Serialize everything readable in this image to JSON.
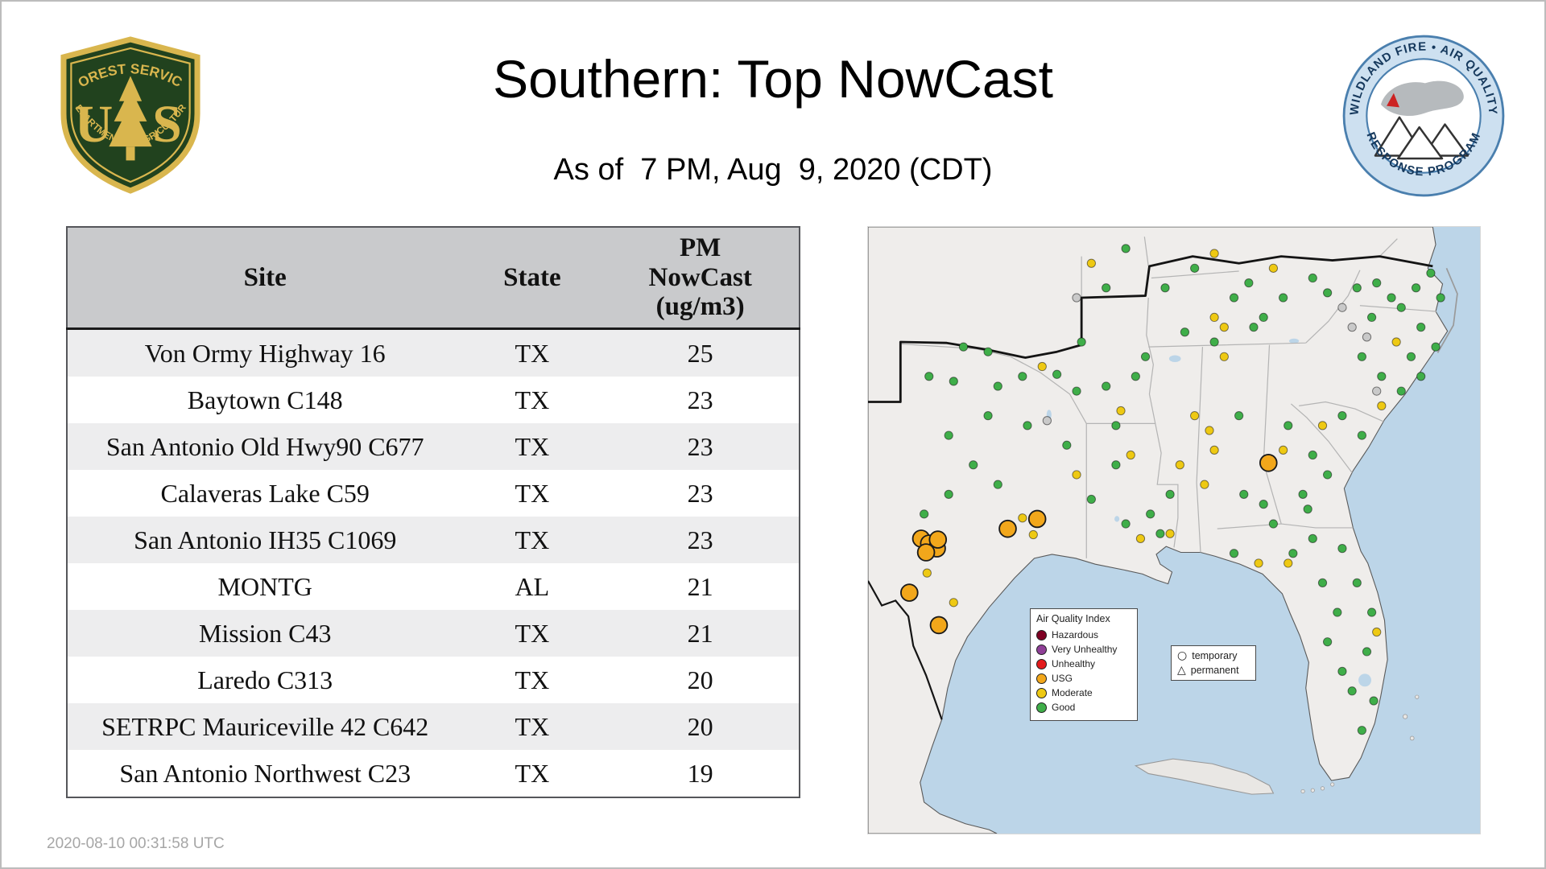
{
  "header": {
    "title": "Southern: Top NowCast",
    "subtitle": "As of  7 PM, Aug  9, 2020 (CDT)",
    "fs_logo": {
      "arc_top": "FOREST SERVICE",
      "letter_left": "U",
      "letter_right": "S",
      "arc_bottom": "DEPARTMENT OF AGRICULTURE"
    },
    "wfaqrp_logo": {
      "arc_top": "WILDLAND FIRE • AIR QUALITY",
      "arc_bottom": "RESPONSE PROGRAM"
    }
  },
  "table": {
    "columns": [
      "Site",
      "State",
      "PM\nNowCast\n(ug/m3)"
    ],
    "rows": [
      [
        "Von Ormy Highway 16",
        "TX",
        25
      ],
      [
        "Baytown C148",
        "TX",
        23
      ],
      [
        "San Antonio Old Hwy90 C677",
        "TX",
        23
      ],
      [
        "Calaveras Lake C59",
        "TX",
        23
      ],
      [
        "San Antonio IH35 C1069",
        "TX",
        23
      ],
      [
        "MONTG",
        "AL",
        21
      ],
      [
        "Mission C43",
        "TX",
        21
      ],
      [
        "Laredo C313",
        "TX",
        20
      ],
      [
        "SETRPC Mauriceville 42 C642",
        "TX",
        20
      ],
      [
        "San Antonio Northwest C23",
        "TX",
        19
      ]
    ]
  },
  "map": {
    "colors": {
      "good": "#3fae49",
      "moderate": "#eec913",
      "usg": "#f2a71b",
      "unhealthy": "#e31a1c",
      "very_unhealthy": "#8f3f97",
      "hazardous": "#7e0023",
      "no_data": "#c9c9c9",
      "water": "#bcd5e8",
      "land": "#efedeb"
    },
    "aqi_legend": {
      "title": "Air Quality Index",
      "items": [
        {
          "label": "Hazardous",
          "color": "#7e0023"
        },
        {
          "label": "Very Unhealthy",
          "color": "#8f3f97"
        },
        {
          "label": "Unhealthy",
          "color": "#e31a1c"
        },
        {
          "label": "USG",
          "color": "#f2a71b"
        },
        {
          "label": "Moderate",
          "color": "#eec913"
        },
        {
          "label": "Good",
          "color": "#3fae49"
        }
      ]
    },
    "marker_legend": {
      "items": [
        {
          "symbol": "circle",
          "label": "temporary"
        },
        {
          "symbol": "triangle",
          "label": "permanent"
        }
      ]
    },
    "points": [
      [
        97,
        122,
        "g"
      ],
      [
        122,
        127,
        "g"
      ],
      [
        62,
        152,
        "g"
      ],
      [
        87,
        157,
        "g"
      ],
      [
        132,
        162,
        "g"
      ],
      [
        157,
        152,
        "g"
      ],
      [
        177,
        142,
        "y"
      ],
      [
        192,
        150,
        "g"
      ],
      [
        212,
        167,
        "g"
      ],
      [
        122,
        192,
        "g"
      ],
      [
        82,
        212,
        "g"
      ],
      [
        162,
        202,
        "g"
      ],
      [
        182,
        197,
        "n"
      ],
      [
        107,
        242,
        "g"
      ],
      [
        132,
        262,
        "g"
      ],
      [
        82,
        272,
        "g"
      ],
      [
        57,
        292,
        "g"
      ],
      [
        202,
        222,
        "g"
      ],
      [
        212,
        252,
        "y"
      ],
      [
        227,
        277,
        "g"
      ],
      [
        60,
        352,
        "y"
      ],
      [
        87,
        382,
        "y"
      ],
      [
        54,
        317,
        "o"
      ],
      [
        62,
        322,
        "o"
      ],
      [
        70,
        327,
        "o"
      ],
      [
        59,
        331,
        "o"
      ],
      [
        71,
        318,
        "o"
      ],
      [
        142,
        307,
        "o"
      ],
      [
        172,
        297,
        "o"
      ],
      [
        157,
        296,
        "y"
      ],
      [
        168,
        313,
        "y"
      ],
      [
        42,
        372,
        "o"
      ],
      [
        72,
        405,
        "o"
      ],
      [
        242,
        162,
        "g"
      ],
      [
        272,
        152,
        "g"
      ],
      [
        257,
        187,
        "y"
      ],
      [
        282,
        132,
        "g"
      ],
      [
        252,
        202,
        "g"
      ],
      [
        267,
        232,
        "y"
      ],
      [
        252,
        242,
        "g"
      ],
      [
        262,
        302,
        "g"
      ],
      [
        277,
        317,
        "y"
      ],
      [
        297,
        312,
        "g"
      ],
      [
        307,
        312,
        "y"
      ],
      [
        287,
        292,
        "g"
      ],
      [
        332,
        192,
        "y"
      ],
      [
        317,
        242,
        "y"
      ],
      [
        307,
        272,
        "g"
      ],
      [
        342,
        262,
        "y"
      ],
      [
        347,
        207,
        "y"
      ],
      [
        352,
        227,
        "y"
      ],
      [
        377,
        192,
        "g"
      ],
      [
        407,
        240,
        "o"
      ],
      [
        382,
        272,
        "g"
      ],
      [
        402,
        282,
        "g"
      ],
      [
        362,
        132,
        "y"
      ],
      [
        427,
        202,
        "g"
      ],
      [
        462,
        202,
        "y"
      ],
      [
        422,
        227,
        "y"
      ],
      [
        452,
        232,
        "g"
      ],
      [
        467,
        252,
        "g"
      ],
      [
        442,
        272,
        "g"
      ],
      [
        412,
        302,
        "g"
      ],
      [
        447,
        287,
        "g"
      ],
      [
        217,
        117,
        "g"
      ],
      [
        212,
        72,
        "n"
      ],
      [
        242,
        62,
        "g"
      ],
      [
        227,
        37,
        "y"
      ],
      [
        262,
        22,
        "g"
      ],
      [
        302,
        62,
        "g"
      ],
      [
        322,
        107,
        "g"
      ],
      [
        352,
        117,
        "g"
      ],
      [
        362,
        102,
        "y"
      ],
      [
        332,
        42,
        "g"
      ],
      [
        352,
        27,
        "y"
      ],
      [
        372,
        72,
        "g"
      ],
      [
        352,
        92,
        "y"
      ],
      [
        392,
        102,
        "g"
      ],
      [
        402,
        92,
        "g"
      ],
      [
        422,
        72,
        "g"
      ],
      [
        387,
        57,
        "g"
      ],
      [
        412,
        42,
        "y"
      ],
      [
        452,
        52,
        "g"
      ],
      [
        467,
        67,
        "g"
      ],
      [
        482,
        82,
        "n"
      ],
      [
        497,
        62,
        "g"
      ],
      [
        517,
        57,
        "g"
      ],
      [
        532,
        72,
        "g"
      ],
      [
        512,
        92,
        "g"
      ],
      [
        542,
        82,
        "g"
      ],
      [
        557,
        62,
        "g"
      ],
      [
        572,
        47,
        "g"
      ],
      [
        582,
        72,
        "g"
      ],
      [
        562,
        102,
        "g"
      ],
      [
        537,
        117,
        "y"
      ],
      [
        552,
        132,
        "g"
      ],
      [
        577,
        122,
        "g"
      ],
      [
        522,
        152,
        "g"
      ],
      [
        542,
        167,
        "g"
      ],
      [
        522,
        182,
        "y"
      ],
      [
        562,
        152,
        "g"
      ],
      [
        502,
        132,
        "g"
      ],
      [
        517,
        167,
        "n"
      ],
      [
        492,
        102,
        "n"
      ],
      [
        507,
        112,
        "n"
      ],
      [
        482,
        192,
        "g"
      ],
      [
        502,
        212,
        "g"
      ],
      [
        432,
        332,
        "g"
      ],
      [
        452,
        317,
        "g"
      ],
      [
        482,
        327,
        "g"
      ],
      [
        462,
        362,
        "g"
      ],
      [
        477,
        392,
        "g"
      ],
      [
        467,
        422,
        "g"
      ],
      [
        482,
        452,
        "g"
      ],
      [
        492,
        472,
        "g"
      ],
      [
        507,
        432,
        "g"
      ],
      [
        512,
        392,
        "g"
      ],
      [
        497,
        362,
        "g"
      ],
      [
        517,
        412,
        "y"
      ],
      [
        502,
        512,
        "g"
      ],
      [
        514,
        482,
        "g"
      ],
      [
        427,
        342,
        "y"
      ],
      [
        397,
        342,
        "y"
      ],
      [
        372,
        332,
        "g"
      ]
    ]
  },
  "footer": {
    "timestamp": "2020-08-10 00:31:58 UTC"
  },
  "chart_data": {
    "type": "table",
    "title": "Southern: Top NowCast",
    "subtitle": "As of  7 PM, Aug  9, 2020 (CDT)",
    "columns": [
      "Site",
      "State",
      "PM NowCast (ug/m3)"
    ],
    "rows": [
      [
        "Von Ormy Highway 16",
        "TX",
        25
      ],
      [
        "Baytown C148",
        "TX",
        23
      ],
      [
        "San Antonio Old Hwy90 C677",
        "TX",
        23
      ],
      [
        "Calaveras Lake C59",
        "TX",
        23
      ],
      [
        "San Antonio IH35 C1069",
        "TX",
        23
      ],
      [
        "MONTG",
        "AL",
        21
      ],
      [
        "Mission C43",
        "TX",
        21
      ],
      [
        "Laredo C313",
        "TX",
        20
      ],
      [
        "SETRPC Mauriceville 42 C642",
        "TX",
        20
      ],
      [
        "San Antonio Northwest C23",
        "TX",
        19
      ]
    ],
    "map_legend_categories": [
      "Hazardous",
      "Very Unhealthy",
      "Unhealthy",
      "USG",
      "Moderate",
      "Good"
    ],
    "map_marker_types": [
      "temporary",
      "permanent"
    ]
  }
}
